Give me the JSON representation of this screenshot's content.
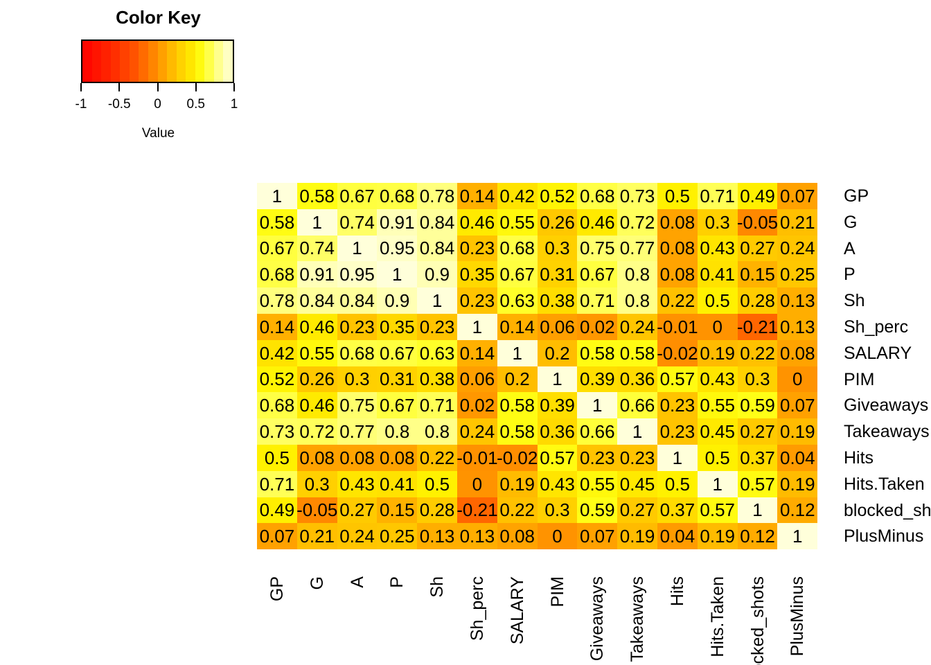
{
  "chart_data": {
    "type": "heatmap",
    "title": "",
    "color_key": {
      "title": "Color Key",
      "axis_label": "Value",
      "ticks": [
        "-1",
        "-0.5",
        "0",
        "0.5",
        "1"
      ],
      "domain": [
        -1,
        1
      ],
      "n_bands": 16
    },
    "colormap_anchors": [
      {
        "value": -1.0,
        "color": "#FF0000"
      },
      {
        "value": -0.6,
        "color": "#FF2A00"
      },
      {
        "value": -0.3,
        "color": "#FF5400"
      },
      {
        "value": -0.1,
        "color": "#FF7C00"
      },
      {
        "value": 0.0,
        "color": "#FF9300"
      },
      {
        "value": 0.1,
        "color": "#FFA700"
      },
      {
        "value": 0.2,
        "color": "#FFBD00"
      },
      {
        "value": 0.3,
        "color": "#FFD000"
      },
      {
        "value": 0.4,
        "color": "#FFE000"
      },
      {
        "value": 0.5,
        "color": "#FFF100"
      },
      {
        "value": 0.6,
        "color": "#FFFF18"
      },
      {
        "value": 0.7,
        "color": "#FFFF50"
      },
      {
        "value": 0.8,
        "color": "#FFFF88"
      },
      {
        "value": 0.9,
        "color": "#FFFFB4"
      },
      {
        "value": 1.0,
        "color": "#FFFFDA"
      }
    ],
    "text_color": "#000000",
    "background": "#FFFFFF",
    "variables": [
      "GP",
      "G",
      "A",
      "P",
      "Sh",
      "Sh_perc",
      "SALARY",
      "PIM",
      "Giveaways",
      "Takeaways",
      "Hits",
      "Hits.Taken",
      "blocked_shots",
      "PlusMinus"
    ],
    "matrix": [
      [
        1,
        0.58,
        0.67,
        0.68,
        0.78,
        0.14,
        0.42,
        0.52,
        0.68,
        0.73,
        0.5,
        0.71,
        0.49,
        0.07
      ],
      [
        0.58,
        1,
        0.74,
        0.91,
        0.84,
        0.46,
        0.55,
        0.26,
        0.46,
        0.72,
        0.08,
        0.3,
        -0.05,
        0.21
      ],
      [
        0.67,
        0.74,
        1,
        0.95,
        0.84,
        0.23,
        0.68,
        0.3,
        0.75,
        0.77,
        0.08,
        0.43,
        0.27,
        0.24
      ],
      [
        0.68,
        0.91,
        0.95,
        1,
        0.9,
        0.35,
        0.67,
        0.31,
        0.67,
        0.8,
        0.08,
        0.41,
        0.15,
        0.25
      ],
      [
        0.78,
        0.84,
        0.84,
        0.9,
        1,
        0.23,
        0.63,
        0.38,
        0.71,
        0.8,
        0.22,
        0.5,
        0.28,
        0.13
      ],
      [
        0.14,
        0.46,
        0.23,
        0.35,
        0.23,
        1,
        0.14,
        0.06,
        0.02,
        0.24,
        -0.01,
        0,
        -0.21,
        0.13
      ],
      [
        0.42,
        0.55,
        0.68,
        0.67,
        0.63,
        0.14,
        1,
        0.2,
        0.58,
        0.58,
        -0.02,
        0.19,
        0.22,
        0.08
      ],
      [
        0.52,
        0.26,
        0.3,
        0.31,
        0.38,
        0.06,
        0.2,
        1,
        0.39,
        0.36,
        0.57,
        0.43,
        0.3,
        0
      ],
      [
        0.68,
        0.46,
        0.75,
        0.67,
        0.71,
        0.02,
        0.58,
        0.39,
        1,
        0.66,
        0.23,
        0.55,
        0.59,
        0.07
      ],
      [
        0.73,
        0.72,
        0.77,
        0.8,
        0.8,
        0.24,
        0.58,
        0.36,
        0.66,
        1,
        0.23,
        0.45,
        0.27,
        0.19
      ],
      [
        0.5,
        0.08,
        0.08,
        0.08,
        0.22,
        -0.01,
        -0.02,
        0.57,
        0.23,
        0.23,
        1,
        0.5,
        0.37,
        0.04
      ],
      [
        0.71,
        0.3,
        0.43,
        0.41,
        0.5,
        0,
        0.19,
        0.43,
        0.55,
        0.45,
        0.5,
        1,
        0.57,
        0.19
      ],
      [
        0.49,
        -0.05,
        0.27,
        0.15,
        0.28,
        -0.21,
        0.22,
        0.3,
        0.59,
        0.27,
        0.37,
        0.57,
        1,
        0.12
      ],
      [
        0.07,
        0.21,
        0.24,
        0.25,
        0.13,
        0.13,
        0.08,
        0,
        0.07,
        0.19,
        0.04,
        0.19,
        0.12,
        1
      ]
    ]
  }
}
